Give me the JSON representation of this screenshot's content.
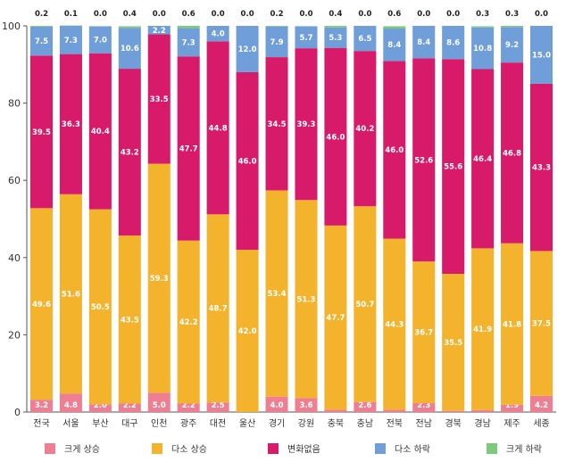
{
  "chart_data": {
    "type": "bar",
    "stacked": true,
    "categories": [
      "전국",
      "서울",
      "부산",
      "대구",
      "인천",
      "광주",
      "대전",
      "울산",
      "경기",
      "강원",
      "충북",
      "충남",
      "전북",
      "전남",
      "경북",
      "경남",
      "제주",
      "세종"
    ],
    "ylim": [
      0,
      100
    ],
    "yticks": [
      0,
      20,
      40,
      60,
      80,
      100
    ],
    "grid": false,
    "legend_position": "bottom",
    "series": [
      {
        "name": "크게 상승",
        "color": "#ee7f93",
        "values": [
          3.2,
          4.8,
          2.0,
          2.2,
          5.0,
          2.2,
          2.5,
          0.0,
          4.0,
          3.6,
          0.6,
          2.6,
          0.6,
          2.3,
          0.3,
          0.5,
          1.9,
          4.2
        ]
      },
      {
        "name": "다소 상승",
        "color": "#f4b32d",
        "values": [
          49.6,
          51.6,
          50.5,
          43.5,
          59.3,
          42.2,
          48.7,
          42.0,
          53.4,
          51.3,
          47.7,
          50.7,
          44.3,
          36.7,
          35.5,
          41.9,
          41.8,
          37.5
        ]
      },
      {
        "name": "변화없음",
        "color": "#d81a6a",
        "values": [
          39.5,
          36.3,
          40.4,
          43.2,
          33.5,
          47.7,
          44.8,
          46.0,
          34.5,
          39.3,
          46.0,
          40.2,
          46.0,
          52.6,
          55.6,
          46.4,
          46.8,
          43.3
        ]
      },
      {
        "name": "다소 하락",
        "color": "#6f9ed8",
        "values": [
          7.5,
          7.3,
          7.0,
          10.6,
          2.2,
          7.3,
          4.0,
          12.0,
          7.9,
          5.7,
          5.3,
          6.5,
          8.4,
          8.4,
          8.6,
          10.8,
          9.2,
          15.0
        ]
      },
      {
        "name": "크게 하락",
        "color": "#7ccb7a",
        "values": [
          0.2,
          0.1,
          0.0,
          0.4,
          0.0,
          0.6,
          0.0,
          0.0,
          0.2,
          0.0,
          0.4,
          0.0,
          0.6,
          0.0,
          0.0,
          0.3,
          0.3,
          0.0
        ]
      }
    ],
    "top_labels": [
      "0.2",
      "0.1",
      "0.0",
      "0.4",
      "0.0",
      "0.6",
      "0.0",
      "0.0",
      "0.2",
      "0.0",
      "0.4",
      "0.0",
      "0.6",
      "0.0",
      "0.0",
      "0.3",
      "0.3",
      "0.0"
    ]
  }
}
